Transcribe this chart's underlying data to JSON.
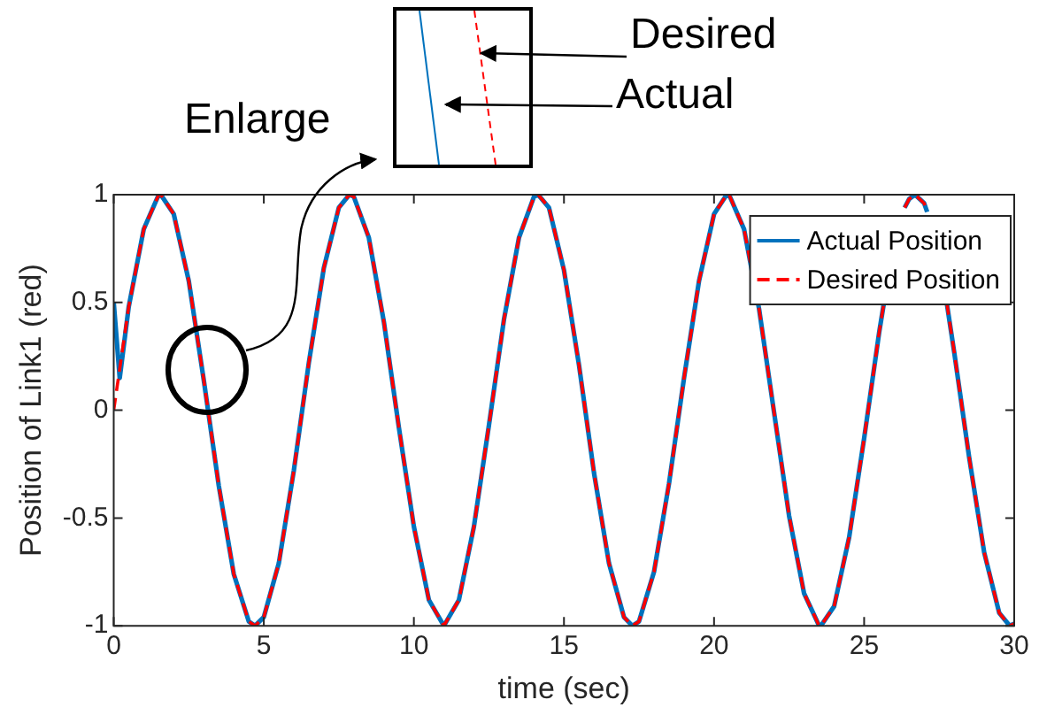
{
  "chart_data": {
    "type": "line",
    "xlabel": "time (sec)",
    "ylabel": "Position of Link1 (red)",
    "xlim": [
      0,
      30
    ],
    "xticks": [
      0,
      5,
      10,
      15,
      20,
      25,
      30
    ],
    "ylim": [
      -1,
      1
    ],
    "yticks": [
      -1,
      -0.5,
      0,
      0.5,
      1
    ],
    "grid": false,
    "legend": "top right",
    "annotations": [
      "Enlarge",
      "Desired",
      "Actual"
    ],
    "series": [
      {
        "name": "Actual Position",
        "color": "#0072bd",
        "line_style": "solid",
        "x": [
          0,
          0.2,
          0.5,
          1,
          1.5,
          1.57,
          2,
          2.5,
          3,
          3.5,
          4,
          4.5,
          4.71,
          5,
          5.5,
          6,
          6.5,
          7,
          7.5,
          7.85,
          8,
          8.5,
          9,
          9.5,
          10,
          10.5,
          11,
          11.5,
          12,
          12.5,
          13,
          13.5,
          14,
          14.14,
          14.5,
          15,
          15.5,
          16,
          16.5,
          17,
          17.28,
          17.5,
          18,
          18.5,
          19,
          19.5,
          20,
          20.42,
          20.5,
          21,
          21.5,
          22,
          22.5,
          23,
          23.5,
          23.56,
          24,
          24.5,
          25,
          25.5,
          25.65,
          26,
          26.35,
          26.5,
          26.7,
          27,
          27.1,
          27.5,
          27.75,
          28,
          28.5,
          29,
          29.5,
          29.85,
          30
        ],
        "values": [
          0.5,
          0.15,
          0.48,
          0.84,
          1,
          1,
          0.91,
          0.6,
          0.14,
          -0.35,
          -0.76,
          -0.98,
          -1,
          -0.96,
          -0.71,
          -0.28,
          0.22,
          0.66,
          0.94,
          1,
          0.99,
          0.8,
          0.41,
          -0.08,
          -0.54,
          -0.88,
          -1,
          -0.88,
          -0.54,
          -0.07,
          0.42,
          0.8,
          0.99,
          1,
          0.94,
          0.65,
          0.21,
          -0.29,
          -0.71,
          -0.96,
          -1,
          -0.98,
          -0.75,
          -0.34,
          0.15,
          0.6,
          0.91,
          1,
          1,
          0.84,
          0.47,
          -0.01,
          -0.49,
          -0.85,
          -1,
          -1,
          -0.91,
          -0.59,
          -0.13,
          0.36,
          0.49,
          null,
          0.94,
          0.98,
          1,
          0.96,
          0.92,
          null,
          0.5,
          0.27,
          -0.22,
          -0.66,
          -0.94,
          -1,
          -0.99
        ]
      },
      {
        "name": "Desired Position",
        "color": "#ff0000",
        "line_style": "dashed",
        "x": [
          0,
          0.5,
          1,
          1.5,
          1.57,
          2,
          2.5,
          3,
          3.5,
          4,
          4.5,
          4.71,
          5,
          5.5,
          6,
          6.5,
          7,
          7.5,
          7.85,
          8,
          8.5,
          9,
          9.5,
          10,
          10.5,
          11,
          11.5,
          12,
          12.5,
          13,
          13.5,
          14,
          14.14,
          14.5,
          15,
          15.5,
          16,
          16.5,
          17,
          17.28,
          17.5,
          18,
          18.5,
          19,
          19.5,
          20,
          20.42,
          20.5,
          21,
          21.5,
          22,
          22.5,
          23,
          23.5,
          23.56,
          24,
          24.5,
          25,
          25.5,
          25.65,
          26,
          26.35,
          26.5,
          26.7,
          27,
          27.1,
          27.5,
          27.75,
          28,
          28.5,
          29,
          29.5,
          29.85,
          30
        ],
        "values": [
          0,
          0.48,
          0.84,
          1,
          1,
          0.91,
          0.6,
          0.14,
          -0.35,
          -0.76,
          -0.98,
          -1,
          -0.96,
          -0.71,
          -0.28,
          0.22,
          0.66,
          0.94,
          1,
          0.99,
          0.8,
          0.41,
          -0.08,
          -0.54,
          -0.88,
          -1,
          -0.88,
          -0.54,
          -0.07,
          0.42,
          0.8,
          0.99,
          1,
          0.94,
          0.65,
          0.21,
          -0.29,
          -0.71,
          -0.96,
          -1,
          -0.98,
          -0.75,
          -0.34,
          0.15,
          0.6,
          0.91,
          1,
          1,
          0.84,
          0.47,
          -0.01,
          -0.49,
          -0.85,
          -1,
          -1,
          -0.91,
          -0.59,
          -0.13,
          0.36,
          0.49,
          null,
          0.94,
          0.98,
          1,
          0.96,
          0.92,
          null,
          0.5,
          0.27,
          -0.22,
          -0.66,
          -0.94,
          -1,
          -0.99
        ]
      }
    ]
  }
}
